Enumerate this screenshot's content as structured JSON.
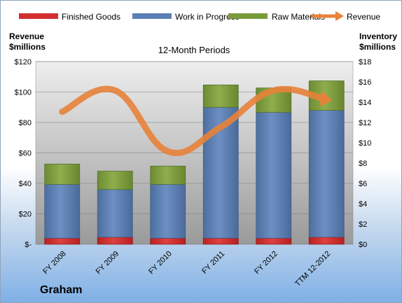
{
  "chart_data": {
    "type": "bar",
    "title": "12-Month Periods",
    "company": "Graham",
    "categories": [
      "FY 2008",
      "FY 2009",
      "FY 2010",
      "FY 2011",
      "FY 2012",
      "TTM 12-2012"
    ],
    "left_axis": {
      "label_line1": "Revenue",
      "label_line2": "$millions",
      "ylim": [
        0,
        120
      ],
      "ticks": [
        "$-",
        "$20",
        "$40",
        "$60",
        "$80",
        "$100",
        "$120"
      ]
    },
    "right_axis": {
      "label_line1": "Inventory",
      "label_line2": "$millions",
      "ylim": [
        0,
        18
      ],
      "ticks": [
        "$0",
        "$2",
        "$4",
        "$6",
        "$8",
        "$10",
        "$12",
        "$14",
        "$16",
        "$18"
      ]
    },
    "series": [
      {
        "name": "Finished Goods",
        "axis": "right",
        "color": "#d32f2f",
        "values": [
          0.6,
          0.7,
          0.6,
          0.6,
          0.6,
          0.7
        ]
      },
      {
        "name": "Work in Progress",
        "axis": "right",
        "color": "#5b7fb5",
        "values": [
          5.3,
          4.7,
          5.3,
          12.9,
          12.4,
          12.5
        ]
      },
      {
        "name": "Raw Materials",
        "axis": "right",
        "color": "#7a9a3c",
        "values": [
          2.0,
          1.8,
          1.8,
          2.2,
          2.4,
          2.9
        ]
      },
      {
        "name": "Revenue",
        "axis": "left",
        "type": "line",
        "color": "#e8823a",
        "values": [
          87,
          101,
          61,
          77,
          101,
          95
        ]
      }
    ],
    "grid": true,
    "legend": "top"
  }
}
